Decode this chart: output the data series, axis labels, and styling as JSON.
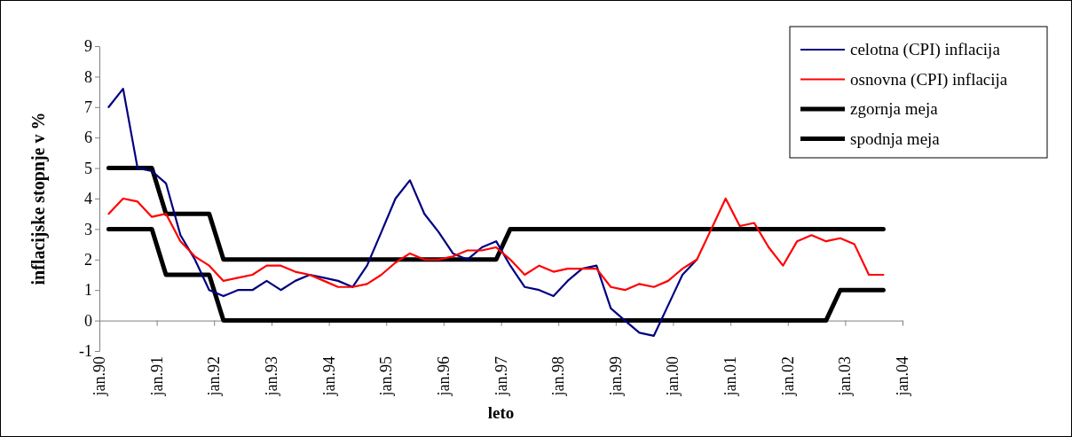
{
  "chart_data": {
    "type": "line",
    "xlabel": "leto",
    "ylabel": "inflacijske stopnje v %",
    "x": [
      "1990-03",
      "1990-06",
      "1990-09",
      "1990-12",
      "1991-03",
      "1991-06",
      "1991-09",
      "1991-12",
      "1992-03",
      "1992-06",
      "1992-09",
      "1992-12",
      "1993-03",
      "1993-06",
      "1993-09",
      "1993-12",
      "1994-03",
      "1994-06",
      "1994-09",
      "1994-12",
      "1995-03",
      "1995-06",
      "1995-09",
      "1995-12",
      "1996-03",
      "1996-06",
      "1996-09",
      "1996-12",
      "1997-03",
      "1997-06",
      "1997-09",
      "1997-12",
      "1998-03",
      "1998-06",
      "1998-09",
      "1998-12",
      "1999-03",
      "1999-06",
      "1999-09",
      "1999-12",
      "2000-03",
      "2000-06",
      "2000-09",
      "2000-12",
      "2001-03",
      "2001-06",
      "2001-09",
      "2001-12",
      "2002-03",
      "2002-06",
      "2002-09",
      "2002-12",
      "2003-03",
      "2003-06",
      "2003-09"
    ],
    "series": [
      {
        "name": "celotna (CPI) inflacija",
        "color": "#000080",
        "values": [
          7.0,
          7.6,
          5.0,
          4.9,
          4.5,
          2.8,
          2.0,
          1.0,
          0.8,
          1.0,
          1.0,
          1.3,
          1.0,
          1.3,
          1.5,
          1.4,
          1.3,
          1.1,
          1.8,
          2.9,
          4.0,
          4.6,
          3.5,
          2.9,
          2.2,
          2.0,
          2.4,
          2.6,
          1.8,
          1.1,
          1.0,
          0.8,
          1.3,
          1.7,
          1.8,
          0.4,
          0.0,
          -0.4,
          -0.5,
          0.5,
          1.5,
          2.0,
          null,
          null,
          null,
          null,
          null,
          null,
          null,
          null,
          null,
          null,
          null,
          null,
          null
        ]
      },
      {
        "name": "osnovna (CPI) inflacija",
        "color": "#ff0000",
        "values": [
          3.5,
          4.0,
          3.9,
          3.4,
          3.5,
          2.6,
          2.1,
          1.8,
          1.3,
          1.4,
          1.5,
          1.8,
          1.8,
          1.6,
          1.5,
          1.3,
          1.1,
          1.1,
          1.2,
          1.5,
          1.9,
          2.2,
          2.0,
          2.0,
          2.1,
          2.3,
          2.3,
          2.4,
          2.0,
          1.5,
          1.8,
          1.6,
          1.7,
          1.7,
          1.7,
          1.1,
          1.0,
          1.2,
          1.1,
          1.3,
          1.7,
          2.0,
          3.0,
          4.0,
          3.1,
          3.2,
          2.4,
          1.8,
          2.6,
          2.8,
          2.6,
          2.7,
          2.5,
          1.5,
          1.5
        ]
      },
      {
        "name": "zgornja meja",
        "color": "#000000",
        "values": [
          5,
          5,
          5,
          5,
          3.5,
          3.5,
          3.5,
          3.5,
          2,
          2,
          2,
          2,
          2,
          2,
          2,
          2,
          2,
          2,
          2,
          2,
          2,
          2,
          2,
          2,
          2,
          2,
          2,
          2,
          3,
          3,
          3,
          3,
          3,
          3,
          3,
          3,
          3,
          3,
          3,
          3,
          3,
          3,
          3,
          3,
          3,
          3,
          3,
          3,
          3,
          3,
          3,
          3,
          3,
          3,
          3
        ]
      },
      {
        "name": "spodnja meja",
        "color": "#000000",
        "values": [
          3,
          3,
          3,
          3,
          1.5,
          1.5,
          1.5,
          1.5,
          0,
          0,
          0,
          0,
          0,
          0,
          0,
          0,
          0,
          0,
          0,
          0,
          0,
          0,
          0,
          0,
          0,
          0,
          0,
          0,
          0,
          0,
          0,
          0,
          0,
          0,
          0,
          0,
          0,
          0,
          0,
          0,
          0,
          0,
          0,
          0,
          0,
          0,
          0,
          0,
          0,
          0,
          0,
          1,
          1,
          1,
          1
        ]
      }
    ],
    "xlim": [
      "1990-01",
      "2004-01"
    ],
    "xticks": [
      {
        "value": "1990-01",
        "label": "jan.90"
      },
      {
        "value": "1991-01",
        "label": "jan.91"
      },
      {
        "value": "1992-01",
        "label": "jan.92"
      },
      {
        "value": "1993-01",
        "label": "jan.93"
      },
      {
        "value": "1994-01",
        "label": "jan.94"
      },
      {
        "value": "1995-01",
        "label": "jan.95"
      },
      {
        "value": "1996-01",
        "label": "jan.96"
      },
      {
        "value": "1997-01",
        "label": "jan.97"
      },
      {
        "value": "1998-01",
        "label": "jan.98"
      },
      {
        "value": "1999-01",
        "label": "jan.99"
      },
      {
        "value": "2000-01",
        "label": "jan.00"
      },
      {
        "value": "2001-01",
        "label": "jan.01"
      },
      {
        "value": "2002-01",
        "label": "jan.02"
      },
      {
        "value": "2003-01",
        "label": "jan.03"
      },
      {
        "value": "2004-01",
        "label": "jan.04"
      }
    ],
    "ylim": [
      -1,
      9
    ],
    "yticks": [
      -1,
      0,
      1,
      2,
      3,
      4,
      5,
      6,
      7,
      8,
      9
    ],
    "legend": "top right",
    "marker": "none",
    "line_style": "solid"
  }
}
